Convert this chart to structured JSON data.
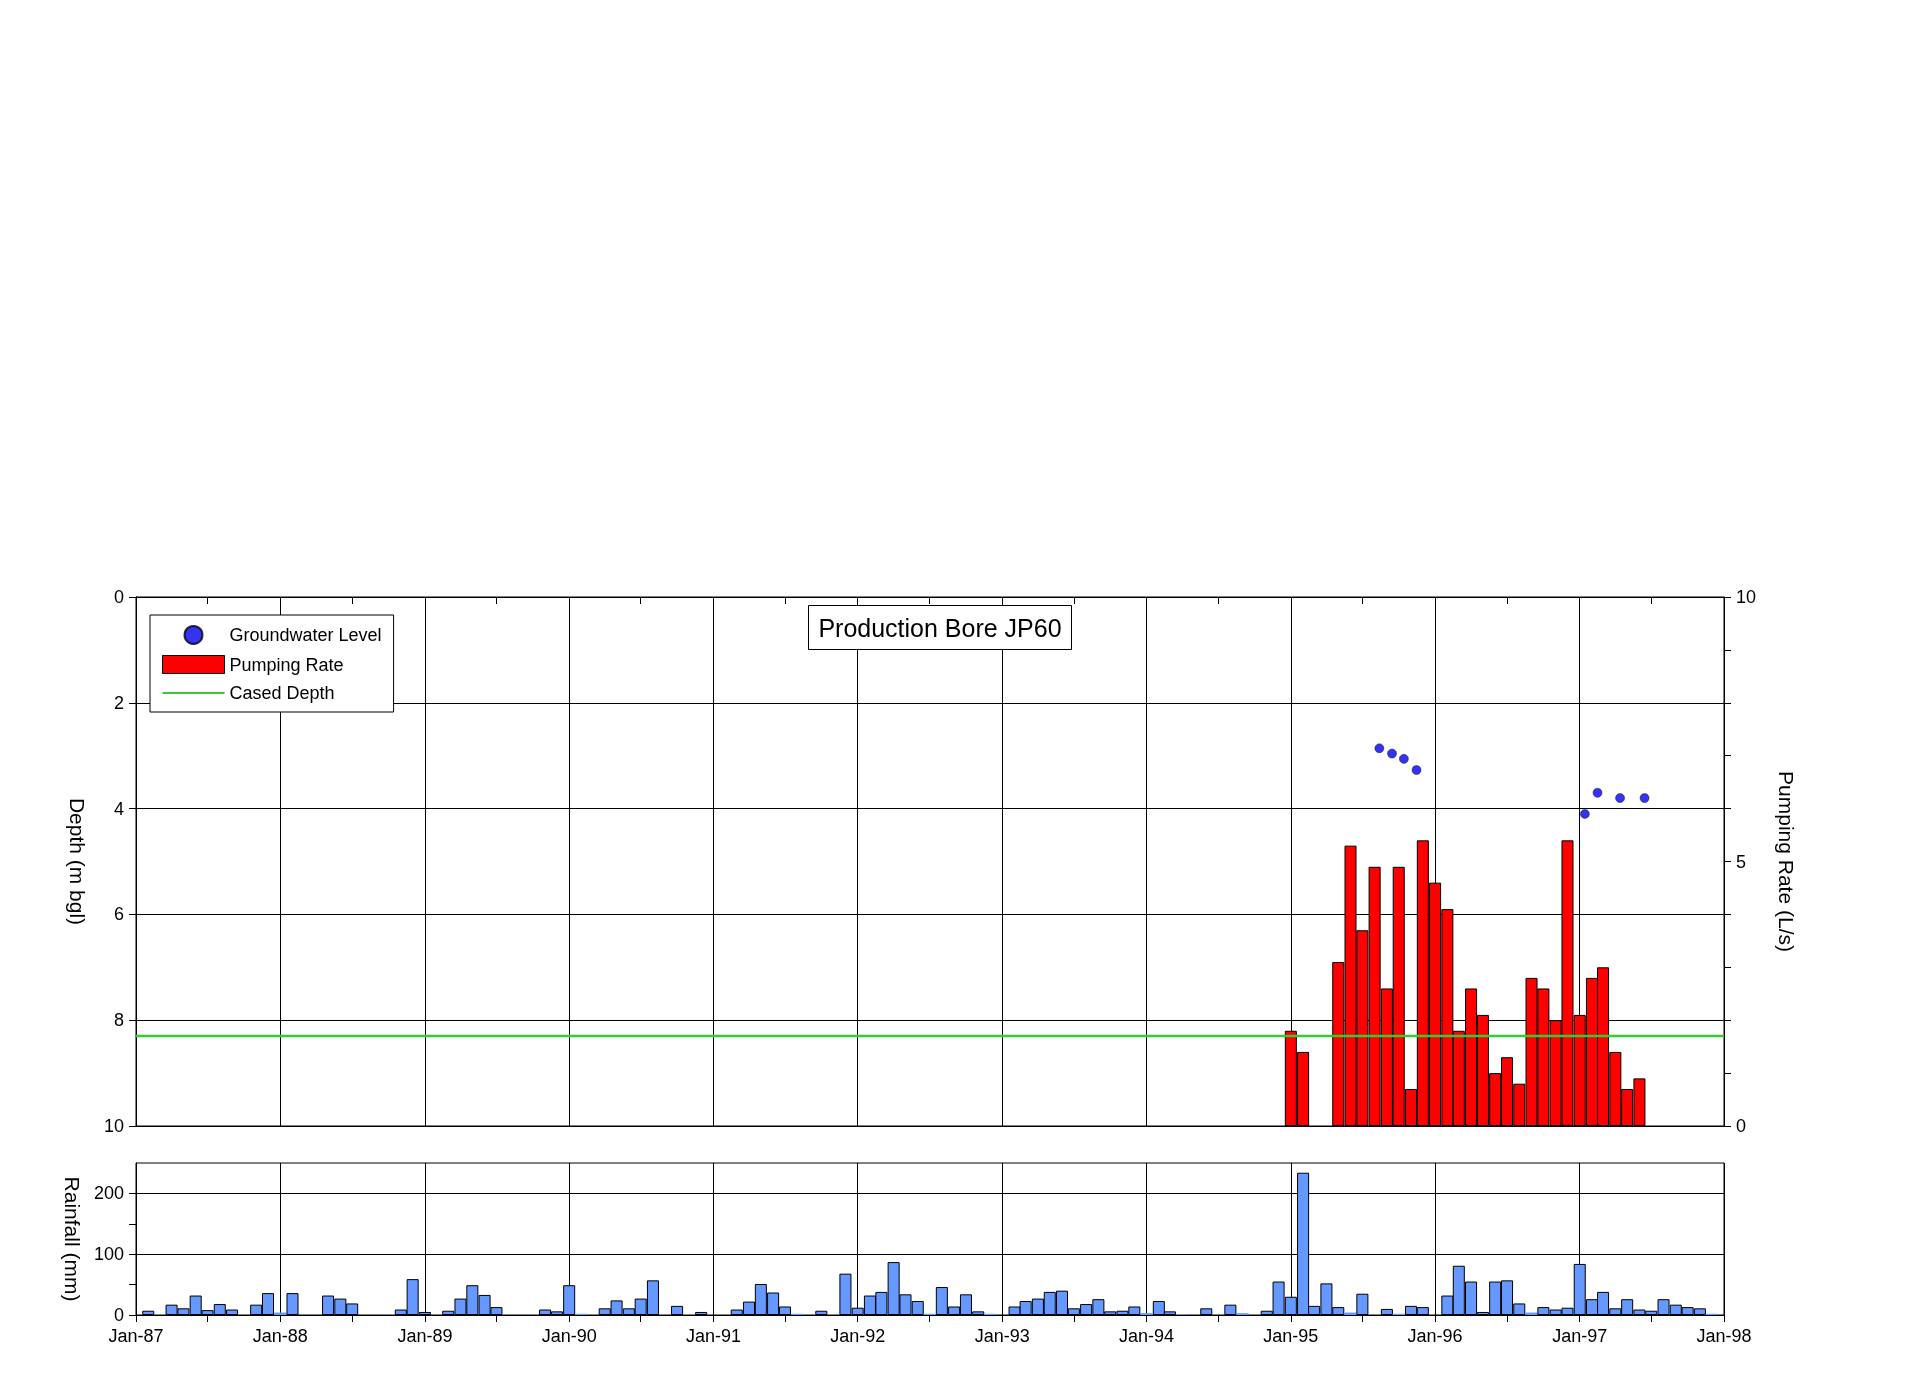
{
  "chart_data": [
    {
      "type": "bar",
      "title": "Production Bore JP60",
      "ylabel": "Depth (m bgl)",
      "y2label": "Pumping Rate (L/s)",
      "ylim": [
        10,
        0
      ],
      "yticks": [
        0,
        2,
        4,
        6,
        8,
        10
      ],
      "y2lim": [
        0,
        10
      ],
      "y2ticks": [
        0,
        {
          "value": 1,
          "label": null
        },
        {
          "value": 2,
          "label": null
        },
        {
          "value": 3,
          "label": null
        },
        {
          "value": 4,
          "label": null
        },
        5,
        {
          "value": 6,
          "label": null
        },
        {
          "value": 7,
          "label": null
        },
        {
          "value": 8,
          "label": null
        },
        {
          "value": 9,
          "label": null
        },
        10
      ],
      "xlim": [
        "1987-01",
        "1998-01"
      ],
      "xticks": [
        "1987-01",
        {
          "value": "1987-07",
          "label": null
        },
        "1988-01",
        {
          "value": "1988-07",
          "label": null
        },
        "1989-01",
        {
          "value": "1989-07",
          "label": null
        },
        "1990-01",
        {
          "value": "1990-07",
          "label": null
        },
        "1991-01",
        {
          "value": "1991-07",
          "label": null
        },
        "1992-01",
        {
          "value": "1992-07",
          "label": null
        },
        "1993-01",
        {
          "value": "1993-07",
          "label": null
        },
        "1994-01",
        {
          "value": "1994-07",
          "label": null
        },
        "1995-01",
        {
          "value": "1995-07",
          "label": null
        },
        "1996-01",
        {
          "value": "1996-07",
          "label": null
        },
        "1997-01",
        {
          "value": "1997-07",
          "label": null
        },
        "1998-01"
      ],
      "tick_labels": "y",
      "grid": true,
      "legend": "top left",
      "series": [
        {
          "name": "Groundwater Level",
          "type": "scatter",
          "marker": "circle",
          "color": "#0000ee",
          "x": [
            "1995-08-13",
            "1995-09-14",
            "1995-10-14",
            "1995-11-15",
            "1997-01-14",
            "1997-02-15",
            "1997-04-13",
            "1997-06-14"
          ],
          "values": [
            2.86,
            2.96,
            3.06,
            3.27,
            4.1,
            3.7,
            3.8,
            3.8
          ]
        },
        {
          "name": "Pumping Rate",
          "axis": "y2",
          "color": "#ff0000",
          "x": [
            "1995-01",
            "1995-02",
            "1995-03",
            "1995-04",
            "1995-05",
            "1995-06",
            "1995-07",
            "1995-08",
            "1995-09",
            "1995-10",
            "1995-11",
            "1995-12",
            "1996-01",
            "1996-02",
            "1996-03",
            "1996-04",
            "1996-05",
            "1996-06",
            "1996-07",
            "1996-08",
            "1996-09",
            "1996-10",
            "1996-11",
            "1996-12",
            "1997-01",
            "1997-02",
            "1997-03",
            "1997-04",
            "1997-05",
            "1997-06"
          ],
          "values": [
            1.8,
            1.4,
            0,
            0,
            3.1,
            5.3,
            3.7,
            4.9,
            2.6,
            4.9,
            0.7,
            5.4,
            4.6,
            4.1,
            1.8,
            2.6,
            2.1,
            1.0,
            1.3,
            0.8,
            2.8,
            2.6,
            2.0,
            5.4,
            2.1,
            2.8,
            3.0,
            1.4,
            0.7,
            0.9
          ]
        }
      ],
      "ref_lines": [
        {
          "axis": "y",
          "value": 8.3,
          "label": "Cased Depth",
          "color": "#33cc33"
        }
      ]
    },
    {
      "type": "bar",
      "ylabel": "Rainfall (mm)",
      "ylim": [
        0,
        250
      ],
      "yticks": [
        0,
        {
          "value": 50,
          "label": null
        },
        100,
        {
          "value": 150,
          "label": null
        },
        200
      ],
      "xlim": [
        "1987-01",
        "1998-01"
      ],
      "xticks": [
        {
          "value": "1987-01",
          "label": "Jan-87"
        },
        {
          "value": "1987-07",
          "label": null
        },
        {
          "value": "1988-01",
          "label": "Jan-88"
        },
        {
          "value": "1988-07",
          "label": null
        },
        {
          "value": "1989-01",
          "label": "Jan-89"
        },
        {
          "value": "1989-07",
          "label": null
        },
        {
          "value": "1990-01",
          "label": "Jan-90"
        },
        {
          "value": "1990-07",
          "label": null
        },
        {
          "value": "1991-01",
          "label": "Jan-91"
        },
        {
          "value": "1991-07",
          "label": null
        },
        {
          "value": "1992-01",
          "label": "Jan-92"
        },
        {
          "value": "1992-07",
          "label": null
        },
        {
          "value": "1993-01",
          "label": "Jan-93"
        },
        {
          "value": "1993-07",
          "label": null
        },
        {
          "value": "1994-01",
          "label": "Jan-94"
        },
        {
          "value": "1994-07",
          "label": null
        },
        {
          "value": "1995-01",
          "label": "Jan-95"
        },
        {
          "value": "1995-07",
          "label": null
        },
        {
          "value": "1996-01",
          "label": "Jan-96"
        },
        {
          "value": "1996-07",
          "label": null
        },
        {
          "value": "1997-01",
          "label": "Jan-97"
        },
        {
          "value": "1997-07",
          "label": null
        },
        {
          "value": "1998-01",
          "label": "Jan-98"
        }
      ],
      "grid": true,
      "series": [
        {
          "color": "#6699ff",
          "x": [
            "1987-02",
            "1987-04",
            "1987-05",
            "1987-06",
            "1987-07",
            "1987-08",
            "1987-09",
            "1987-11",
            "1987-12",
            "1988-01",
            "1988-02",
            "1988-05",
            "1988-06",
            "1988-07",
            "1988-11",
            "1988-12",
            "1989-01",
            "1989-03",
            "1989-04",
            "1989-05",
            "1989-06",
            "1989-07",
            "1989-11",
            "1989-12",
            "1990-01",
            "1990-02",
            "1990-04",
            "1990-05",
            "1990-06",
            "1990-07",
            "1990-08",
            "1990-10",
            "1990-12",
            "1991-03",
            "1991-04",
            "1991-05",
            "1991-06",
            "1991-07",
            "1991-08",
            "1991-10",
            "1991-12",
            "1992-01",
            "1992-02",
            "1992-03",
            "1992-04",
            "1992-05",
            "1992-06",
            "1992-07",
            "1992-08",
            "1992-09",
            "1992-10",
            "1992-11",
            "1992-12",
            "1993-02",
            "1993-03",
            "1993-04",
            "1993-05",
            "1993-06",
            "1993-07",
            "1993-08",
            "1993-09",
            "1993-10",
            "1993-11",
            "1993-12",
            "1994-01",
            "1994-02",
            "1994-03",
            "1994-04",
            "1994-06",
            "1994-08",
            "1994-09",
            "1994-11",
            "1994-12",
            "1995-01",
            "1995-02",
            "1995-03",
            "1995-04",
            "1995-05",
            "1995-06",
            "1995-07",
            "1995-09",
            "1995-10",
            "1995-11",
            "1995-12",
            "1996-02",
            "1996-03",
            "1996-04",
            "1996-05",
            "1996-06",
            "1996-07",
            "1996-08",
            "1996-09",
            "1996-10",
            "1996-11",
            "1996-12",
            "1997-01",
            "1997-02",
            "1997-03",
            "1997-04",
            "1997-05",
            "1997-06",
            "1997-07",
            "1997-08",
            "1997-09",
            "1997-10",
            "1997-11",
            "1997-12"
          ],
          "values": [
            7,
            17,
            11,
            32,
            8,
            18,
            9,
            17,
            36,
            4,
            36,
            32,
            27,
            19,
            9,
            59,
            5,
            7,
            27,
            49,
            33,
            13,
            9,
            6,
            49,
            2,
            11,
            24,
            11,
            27,
            57,
            15,
            5,
            9,
            22,
            51,
            37,
            14,
            2,
            7,
            68,
            12,
            32,
            38,
            87,
            34,
            23,
            2,
            46,
            14,
            34,
            6,
            2,
            14,
            23,
            27,
            38,
            40,
            11,
            18,
            26,
            6,
            7,
            14,
            3,
            23,
            6,
            1,
            11,
            17,
            3,
            7,
            55,
            30,
            234,
            15,
            52,
            13,
            4,
            35,
            10,
            2,
            15,
            13,
            32,
            81,
            55,
            5,
            55,
            57,
            19,
            4,
            13,
            9,
            12,
            84,
            26,
            38,
            11,
            26,
            9,
            7,
            26,
            17,
            13,
            11,
            2
          ]
        }
      ]
    }
  ]
}
